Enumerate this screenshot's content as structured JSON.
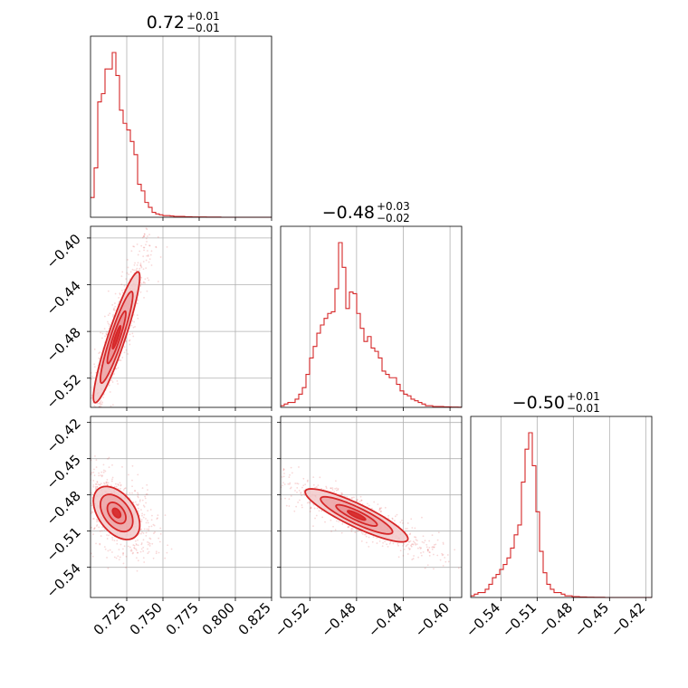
{
  "colors": {
    "accent": "#d62728",
    "fill_light": "#f2c9ca",
    "fill_mid": "#e98f91",
    "grid": "#b0b0b0",
    "axis": "#000000"
  },
  "chart_data": {
    "type": "corner",
    "grid": true,
    "parameters": [
      {
        "title_main": "0.72",
        "title_plus": "+0.01",
        "title_minus": "−0.01",
        "median": 0.72,
        "err_plus": 0.01,
        "err_minus": 0.01,
        "range": [
          0.7,
          0.825
        ],
        "ticks": [
          0.725,
          0.75,
          0.775,
          0.8,
          0.825
        ],
        "tick_labels": [
          "0.725",
          "0.750",
          "0.775",
          "0.800",
          "0.825"
        ],
        "hist": {
          "edges_start": 0.7,
          "bin_width": 0.0025,
          "counts": [
            12,
            30,
            70,
            75,
            90,
            90,
            100,
            86,
            65,
            57,
            53,
            46,
            38,
            20,
            16,
            9,
            6,
            3,
            2,
            1.5,
            1,
            1,
            0.8,
            0.5,
            0.5,
            0.5,
            0.3,
            0.3,
            0.2,
            0.2,
            0.2,
            0.2,
            0.1,
            0.1,
            0.1,
            0.1,
            0,
            0,
            0,
            0,
            0,
            0,
            0,
            0,
            0,
            0,
            0,
            0,
            0,
            0
          ]
        }
      },
      {
        "title_main": "−0.48",
        "title_plus": "+0.03",
        "title_minus": "−0.02",
        "median": -0.48,
        "err_plus": 0.03,
        "err_minus": 0.02,
        "range": [
          -0.545,
          -0.39
        ],
        "ticks": [
          -0.52,
          -0.48,
          -0.44,
          -0.4
        ],
        "tick_labels": [
          "−0.52",
          "−0.48",
          "−0.44",
          "−0.40"
        ],
        "hist": {
          "edges_start": -0.545,
          "bin_width": 0.0031,
          "counts": [
            1,
            2,
            3,
            3,
            5,
            8,
            12,
            20,
            30,
            37,
            45,
            50,
            54,
            57,
            58,
            72,
            100,
            85,
            60,
            70,
            69,
            57,
            48,
            40,
            43,
            36,
            34,
            30,
            22,
            20,
            18,
            18,
            14,
            10,
            8,
            7,
            5,
            4,
            3,
            2,
            1,
            1,
            0.5,
            0.5,
            0.5,
            0.3,
            0.3,
            0.2,
            0.2,
            0.1
          ]
        }
      },
      {
        "title_main": "−0.50",
        "title_plus": "+0.01",
        "title_minus": "−0.01",
        "median": -0.5,
        "err_plus": 0.01,
        "err_minus": 0.01,
        "range": [
          -0.565,
          -0.415
        ],
        "ticks": [
          -0.54,
          -0.51,
          -0.48,
          -0.45,
          -0.42
        ],
        "tick_labels": [
          "−0.54",
          "−0.51",
          "−0.48",
          "−0.45",
          "−0.42"
        ],
        "hist": {
          "edges_start": -0.565,
          "bin_width": 0.003,
          "counts": [
            1,
            2,
            3,
            3,
            5,
            8,
            12,
            14,
            17,
            20,
            24,
            30,
            38,
            44,
            70,
            90,
            100,
            80,
            52,
            28,
            15,
            8,
            5,
            3,
            3,
            2,
            1,
            1,
            0.5,
            0.5,
            0.3,
            0.3,
            0.2,
            0.2,
            0.1,
            0.1,
            0.1,
            0,
            0,
            0,
            0,
            0,
            0,
            0,
            0,
            0,
            0,
            0,
            0,
            0
          ]
        }
      }
    ],
    "pairs": [
      {
        "x_param": 0,
        "y_param": 1,
        "center": [
          0.718,
          -0.485
        ],
        "sx": 0.008,
        "sy": 0.028,
        "rho": 0.92
      },
      {
        "x_param": 0,
        "y_param": 2,
        "center": [
          0.718,
          -0.495
        ],
        "sx": 0.008,
        "sy": 0.011,
        "rho": -0.45
      },
      {
        "x_param": 1,
        "y_param": 2,
        "center": [
          -0.48,
          -0.497
        ],
        "sx": 0.022,
        "sy": 0.011,
        "rho": -0.88
      }
    ]
  }
}
